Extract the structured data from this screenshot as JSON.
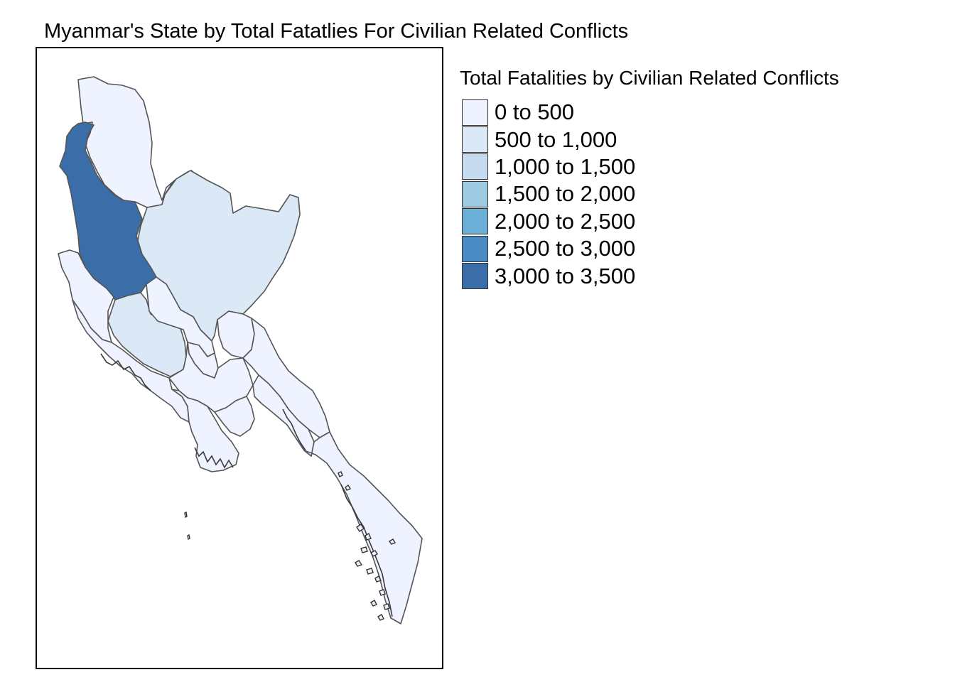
{
  "title": "Myanmar's State by Total Fatatlies For Civilian Related Conflicts",
  "legend": {
    "title": "Total Fatalities by Civilian Related Conflicts",
    "items": [
      {
        "label": "0 to 500",
        "color": "#eff3ff"
      },
      {
        "label": "500 to 1,000",
        "color": "#dbe9f6"
      },
      {
        "label": "1,000 to 1,500",
        "color": "#c6dbef"
      },
      {
        "label": "1,500 to 2,000",
        "color": "#9ecae1"
      },
      {
        "label": "2,000 to 2,500",
        "color": "#6baed6"
      },
      {
        "label": "2,500 to 3,000",
        "color": "#4a8bc4"
      },
      {
        "label": "3,000 to 3,500",
        "color": "#3b6ea8"
      }
    ]
  },
  "map": {
    "border_color": "#555555",
    "region_classes": {
      "kachin": "0 to 500",
      "sagaing": "3,000 to 3,500",
      "shan": "500 to 1,000",
      "chin": "0 to 500",
      "rakhine": "0 to 500",
      "magway": "500 to 1,000",
      "mandalay": "0 to 500",
      "naypyitaw": "0 to 500",
      "kayah": "0 to 500",
      "bago": "0 to 500",
      "ayeyarwady": "0 to 500",
      "yangon": "0 to 500",
      "kayin": "0 to 500",
      "mon": "0 to 500",
      "tanintharyi": "0 to 500"
    }
  }
}
